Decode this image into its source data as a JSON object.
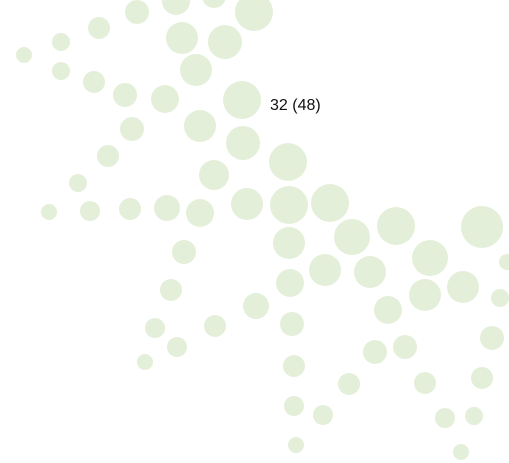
{
  "label": "32 (48)"
}
